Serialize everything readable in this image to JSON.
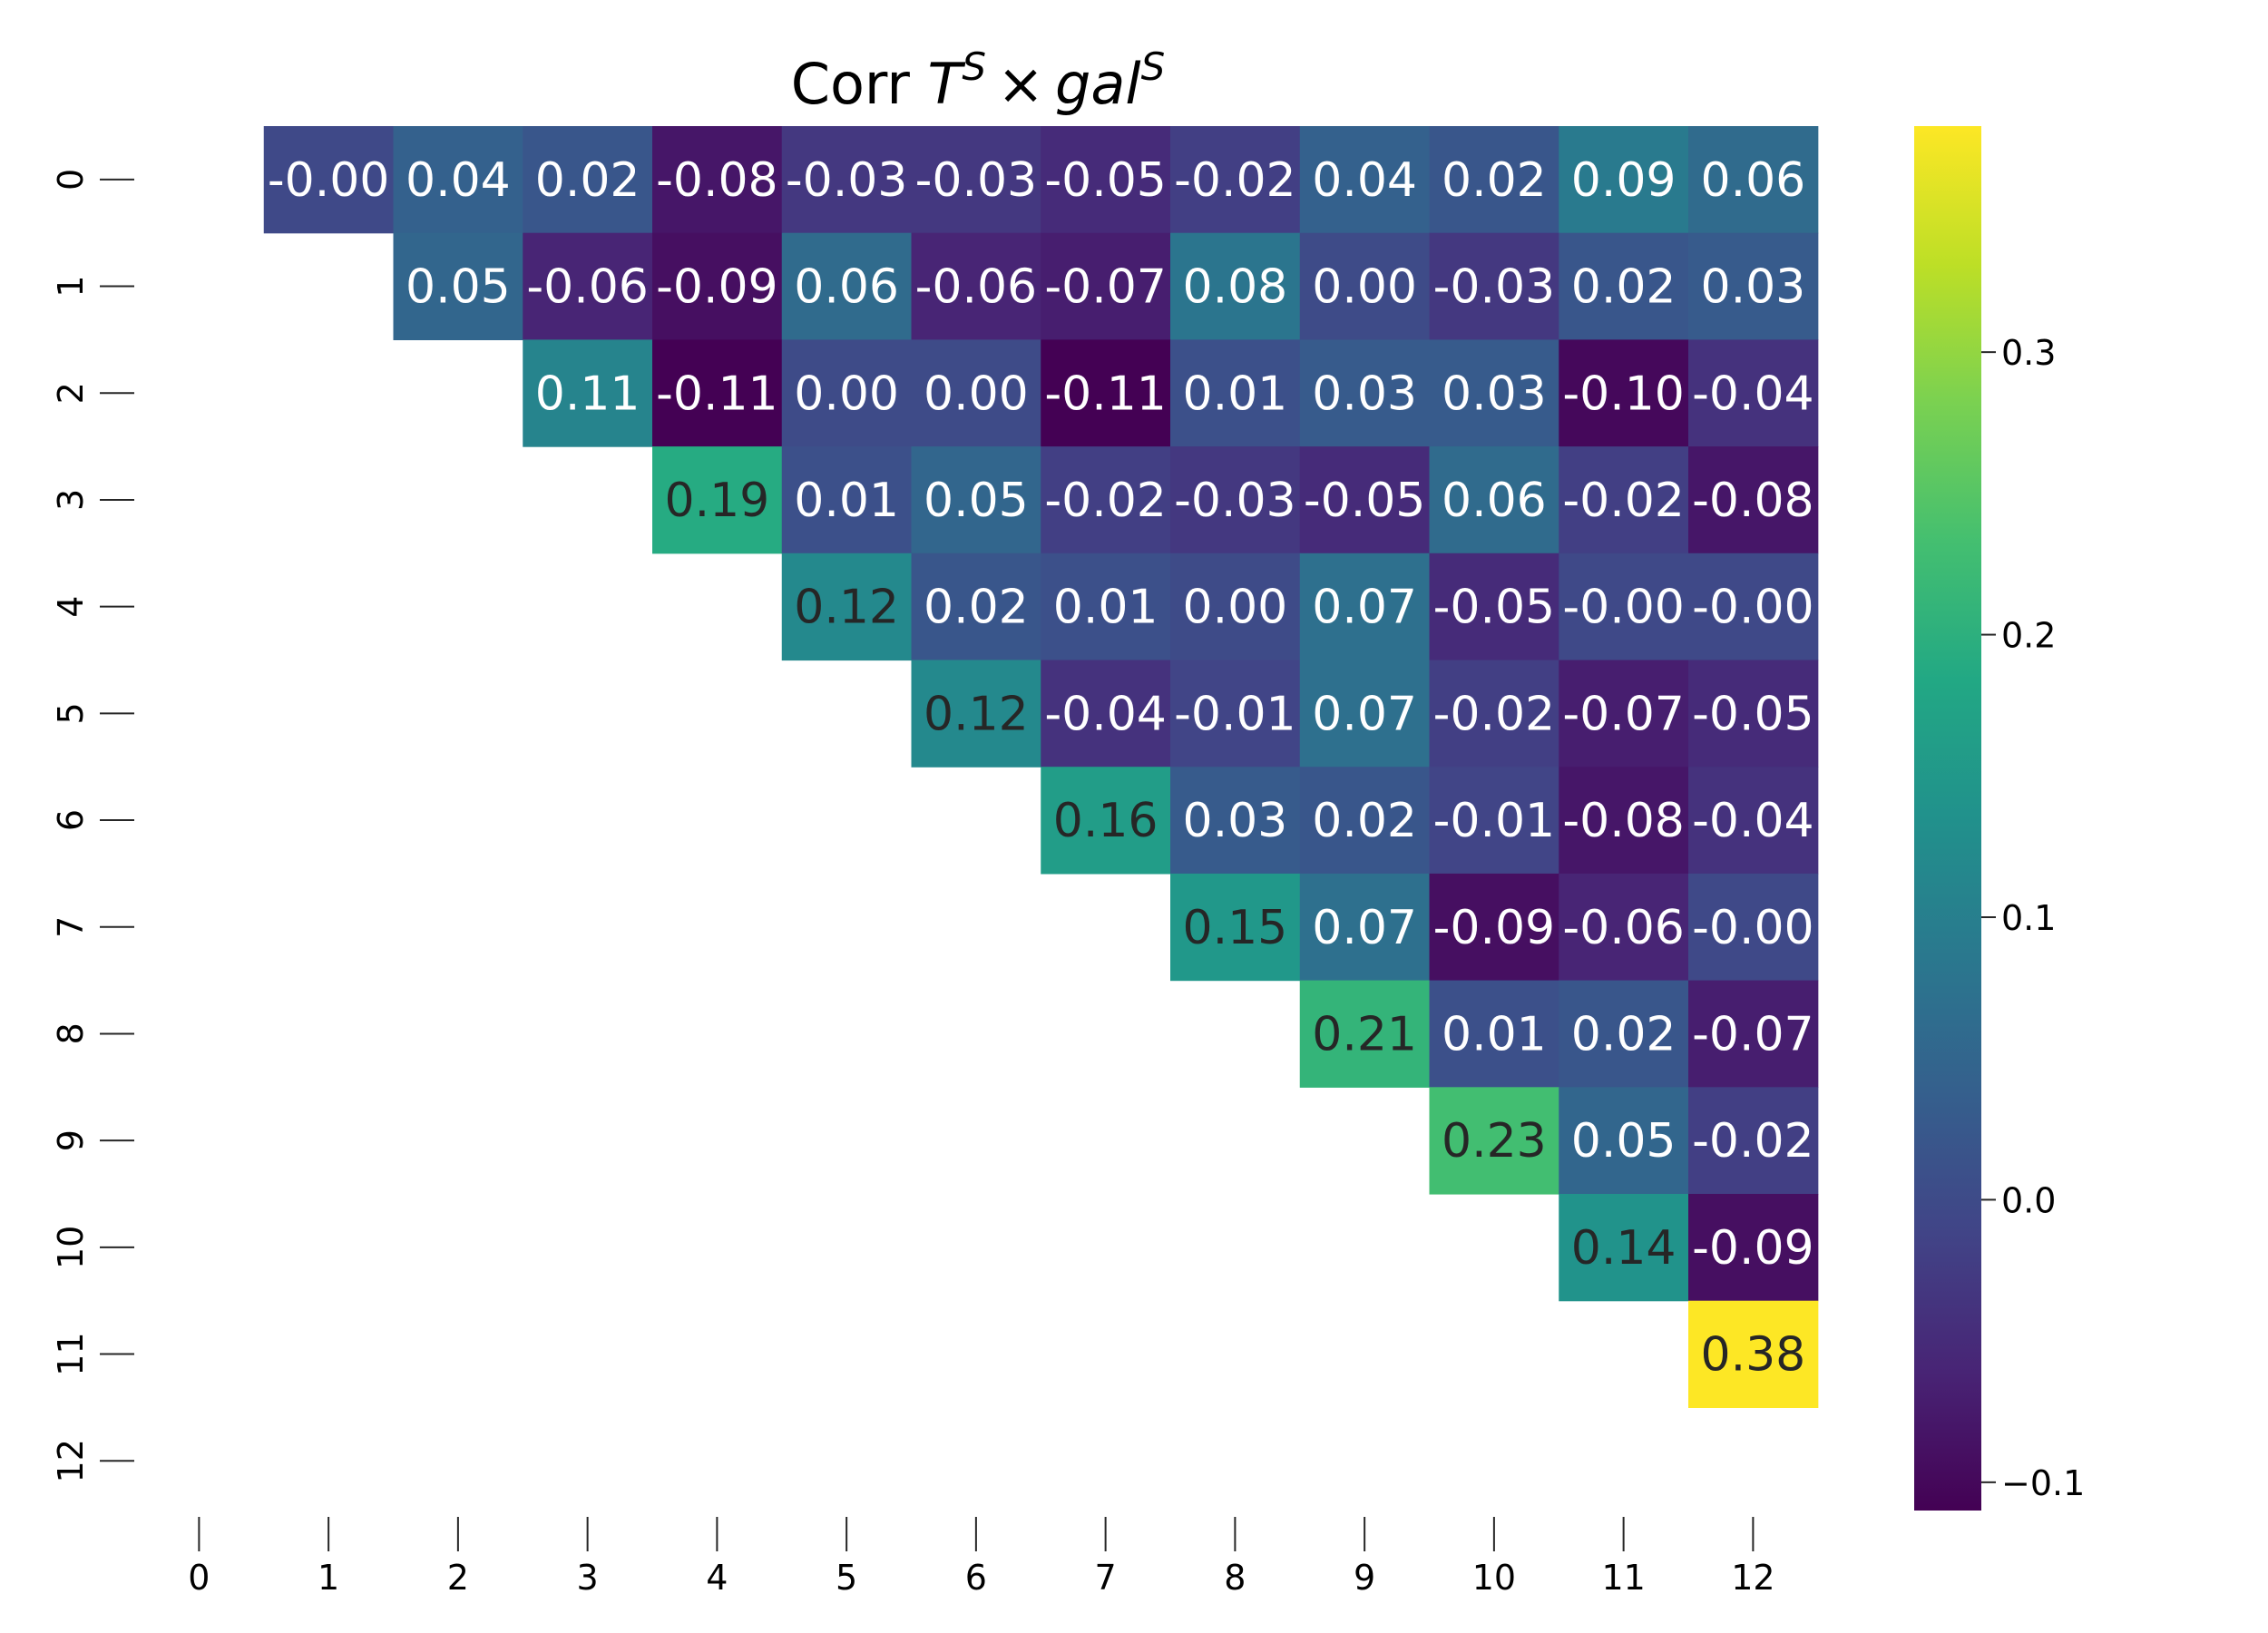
{
  "chart_data": {
    "type": "heatmap",
    "title_prefix": "Corr ",
    "title_math": {
      "a": "T",
      "a_sup": "S",
      "op": "×",
      "b": "gal",
      "b_sup": "S"
    },
    "title": "Corr T^S × gal^S",
    "x_ticks": [
      "0",
      "1",
      "2",
      "3",
      "4",
      "5",
      "6",
      "7",
      "8",
      "9",
      "10",
      "11",
      "12"
    ],
    "y_ticks": [
      "0",
      "1",
      "2",
      "3",
      "4",
      "5",
      "6",
      "7",
      "8",
      "9",
      "10",
      "11",
      "12"
    ],
    "colormap": "viridis",
    "vmin": -0.11,
    "vmax": 0.38,
    "colorbar_ticks": [
      {
        "value": -0.1,
        "label": "−0.1"
      },
      {
        "value": 0.0,
        "label": "0.0"
      },
      {
        "value": 0.1,
        "label": "0.1"
      },
      {
        "value": 0.2,
        "label": "0.2"
      },
      {
        "value": 0.3,
        "label": "0.3"
      }
    ],
    "dark_text_color": "#262626",
    "light_text_color": "#ffffff",
    "cells": [
      {
        "row": 0,
        "col": 1,
        "value": -0.003,
        "label": "-0.00"
      },
      {
        "row": 0,
        "col": 2,
        "value": 0.04,
        "label": "0.04"
      },
      {
        "row": 0,
        "col": 3,
        "value": 0.02,
        "label": "0.02"
      },
      {
        "row": 0,
        "col": 4,
        "value": -0.08,
        "label": "-0.08"
      },
      {
        "row": 0,
        "col": 5,
        "value": -0.03,
        "label": "-0.03"
      },
      {
        "row": 0,
        "col": 6,
        "value": -0.03,
        "label": "-0.03"
      },
      {
        "row": 0,
        "col": 7,
        "value": -0.05,
        "label": "-0.05"
      },
      {
        "row": 0,
        "col": 8,
        "value": -0.02,
        "label": "-0.02"
      },
      {
        "row": 0,
        "col": 9,
        "value": 0.04,
        "label": "0.04"
      },
      {
        "row": 0,
        "col": 10,
        "value": 0.02,
        "label": "0.02"
      },
      {
        "row": 0,
        "col": 11,
        "value": 0.09,
        "label": "0.09"
      },
      {
        "row": 0,
        "col": 12,
        "value": 0.06,
        "label": "0.06"
      },
      {
        "row": 1,
        "col": 2,
        "value": 0.05,
        "label": "0.05"
      },
      {
        "row": 1,
        "col": 3,
        "value": -0.06,
        "label": "-0.06"
      },
      {
        "row": 1,
        "col": 4,
        "value": -0.09,
        "label": "-0.09"
      },
      {
        "row": 1,
        "col": 5,
        "value": 0.06,
        "label": "0.06"
      },
      {
        "row": 1,
        "col": 6,
        "value": -0.06,
        "label": "-0.06"
      },
      {
        "row": 1,
        "col": 7,
        "value": -0.07,
        "label": "-0.07"
      },
      {
        "row": 1,
        "col": 8,
        "value": 0.08,
        "label": "0.08"
      },
      {
        "row": 1,
        "col": 9,
        "value": 0.0,
        "label": "0.00"
      },
      {
        "row": 1,
        "col": 10,
        "value": -0.03,
        "label": "-0.03"
      },
      {
        "row": 1,
        "col": 11,
        "value": 0.02,
        "label": "0.02"
      },
      {
        "row": 1,
        "col": 12,
        "value": 0.03,
        "label": "0.03"
      },
      {
        "row": 2,
        "col": 3,
        "value": 0.11,
        "label": "0.11"
      },
      {
        "row": 2,
        "col": 4,
        "value": -0.11,
        "label": "-0.11"
      },
      {
        "row": 2,
        "col": 5,
        "value": 0.0,
        "label": "0.00"
      },
      {
        "row": 2,
        "col": 6,
        "value": 0.0,
        "label": "0.00"
      },
      {
        "row": 2,
        "col": 7,
        "value": -0.11,
        "label": "-0.11"
      },
      {
        "row": 2,
        "col": 8,
        "value": 0.01,
        "label": "0.01"
      },
      {
        "row": 2,
        "col": 9,
        "value": 0.03,
        "label": "0.03"
      },
      {
        "row": 2,
        "col": 10,
        "value": 0.03,
        "label": "0.03"
      },
      {
        "row": 2,
        "col": 11,
        "value": -0.1,
        "label": "-0.10"
      },
      {
        "row": 2,
        "col": 12,
        "value": -0.04,
        "label": "-0.04"
      },
      {
        "row": 3,
        "col": 4,
        "value": 0.19,
        "label": "0.19"
      },
      {
        "row": 3,
        "col": 5,
        "value": 0.01,
        "label": "0.01"
      },
      {
        "row": 3,
        "col": 6,
        "value": 0.05,
        "label": "0.05"
      },
      {
        "row": 3,
        "col": 7,
        "value": -0.02,
        "label": "-0.02"
      },
      {
        "row": 3,
        "col": 8,
        "value": -0.03,
        "label": "-0.03"
      },
      {
        "row": 3,
        "col": 9,
        "value": -0.05,
        "label": "-0.05"
      },
      {
        "row": 3,
        "col": 10,
        "value": 0.06,
        "label": "0.06"
      },
      {
        "row": 3,
        "col": 11,
        "value": -0.02,
        "label": "-0.02"
      },
      {
        "row": 3,
        "col": 12,
        "value": -0.08,
        "label": "-0.08"
      },
      {
        "row": 4,
        "col": 5,
        "value": 0.12,
        "label": "0.12"
      },
      {
        "row": 4,
        "col": 6,
        "value": 0.02,
        "label": "0.02"
      },
      {
        "row": 4,
        "col": 7,
        "value": 0.01,
        "label": "0.01"
      },
      {
        "row": 4,
        "col": 8,
        "value": 0.0,
        "label": "0.00"
      },
      {
        "row": 4,
        "col": 9,
        "value": 0.07,
        "label": "0.07"
      },
      {
        "row": 4,
        "col": 10,
        "value": -0.05,
        "label": "-0.05"
      },
      {
        "row": 4,
        "col": 11,
        "value": -0.003,
        "label": "-0.00"
      },
      {
        "row": 4,
        "col": 12,
        "value": -0.003,
        "label": "-0.00"
      },
      {
        "row": 5,
        "col": 6,
        "value": 0.12,
        "label": "0.12"
      },
      {
        "row": 5,
        "col": 7,
        "value": -0.04,
        "label": "-0.04"
      },
      {
        "row": 5,
        "col": 8,
        "value": -0.01,
        "label": "-0.01"
      },
      {
        "row": 5,
        "col": 9,
        "value": 0.07,
        "label": "0.07"
      },
      {
        "row": 5,
        "col": 10,
        "value": -0.02,
        "label": "-0.02"
      },
      {
        "row": 5,
        "col": 11,
        "value": -0.07,
        "label": "-0.07"
      },
      {
        "row": 5,
        "col": 12,
        "value": -0.05,
        "label": "-0.05"
      },
      {
        "row": 6,
        "col": 7,
        "value": 0.16,
        "label": "0.16"
      },
      {
        "row": 6,
        "col": 8,
        "value": 0.03,
        "label": "0.03"
      },
      {
        "row": 6,
        "col": 9,
        "value": 0.02,
        "label": "0.02"
      },
      {
        "row": 6,
        "col": 10,
        "value": -0.01,
        "label": "-0.01"
      },
      {
        "row": 6,
        "col": 11,
        "value": -0.08,
        "label": "-0.08"
      },
      {
        "row": 6,
        "col": 12,
        "value": -0.04,
        "label": "-0.04"
      },
      {
        "row": 7,
        "col": 8,
        "value": 0.15,
        "label": "0.15"
      },
      {
        "row": 7,
        "col": 9,
        "value": 0.07,
        "label": "0.07"
      },
      {
        "row": 7,
        "col": 10,
        "value": -0.09,
        "label": "-0.09"
      },
      {
        "row": 7,
        "col": 11,
        "value": -0.06,
        "label": "-0.06"
      },
      {
        "row": 7,
        "col": 12,
        "value": -0.003,
        "label": "-0.00"
      },
      {
        "row": 8,
        "col": 9,
        "value": 0.21,
        "label": "0.21"
      },
      {
        "row": 8,
        "col": 10,
        "value": 0.01,
        "label": "0.01"
      },
      {
        "row": 8,
        "col": 11,
        "value": 0.02,
        "label": "0.02"
      },
      {
        "row": 8,
        "col": 12,
        "value": -0.07,
        "label": "-0.07"
      },
      {
        "row": 9,
        "col": 10,
        "value": 0.23,
        "label": "0.23"
      },
      {
        "row": 9,
        "col": 11,
        "value": 0.05,
        "label": "0.05"
      },
      {
        "row": 9,
        "col": 12,
        "value": -0.02,
        "label": "-0.02"
      },
      {
        "row": 10,
        "col": 11,
        "value": 0.14,
        "label": "0.14"
      },
      {
        "row": 10,
        "col": 12,
        "value": -0.09,
        "label": "-0.09"
      },
      {
        "row": 11,
        "col": 12,
        "value": 0.38,
        "label": "0.38"
      }
    ]
  }
}
